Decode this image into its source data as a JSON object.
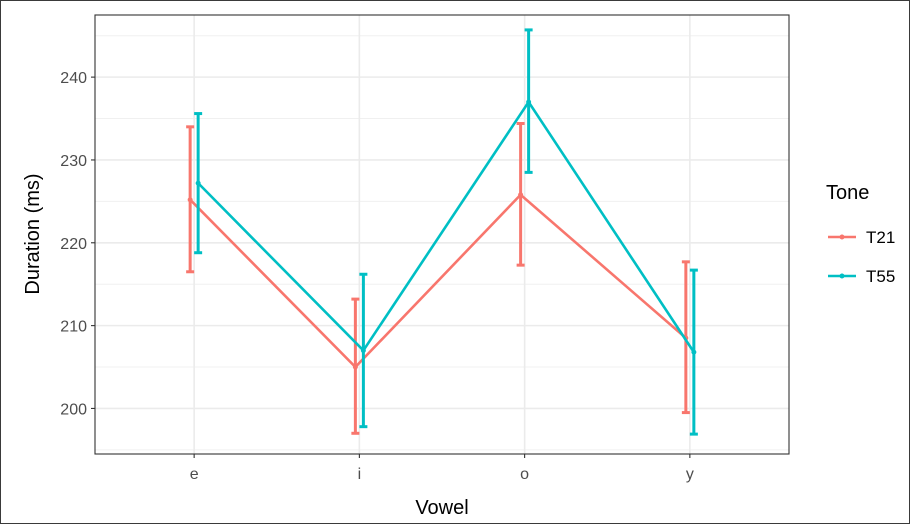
{
  "chart_data": {
    "type": "line",
    "xlabel": "Vowel",
    "ylabel": "Duration (ms)",
    "categories": [
      "e",
      "i",
      "o",
      "y"
    ],
    "ylim": [
      194.5,
      247.5
    ],
    "yticks": [
      200,
      210,
      220,
      230,
      240
    ],
    "grid": true,
    "legend": {
      "title": "Tone",
      "position": "right"
    },
    "series": [
      {
        "name": "T21",
        "color": "#F8766D",
        "values": [
          225.2,
          205.0,
          225.8,
          208.5
        ],
        "err_low": [
          216.5,
          197.0,
          217.3,
          199.5
        ],
        "err_high": [
          234.0,
          213.2,
          234.4,
          217.7
        ]
      },
      {
        "name": "T55",
        "color": "#00BFC4",
        "values": [
          227.2,
          207.0,
          237.0,
          206.8
        ],
        "err_low": [
          218.8,
          197.8,
          228.5,
          196.9
        ],
        "err_high": [
          235.6,
          216.2,
          245.7,
          216.7
        ]
      }
    ]
  }
}
